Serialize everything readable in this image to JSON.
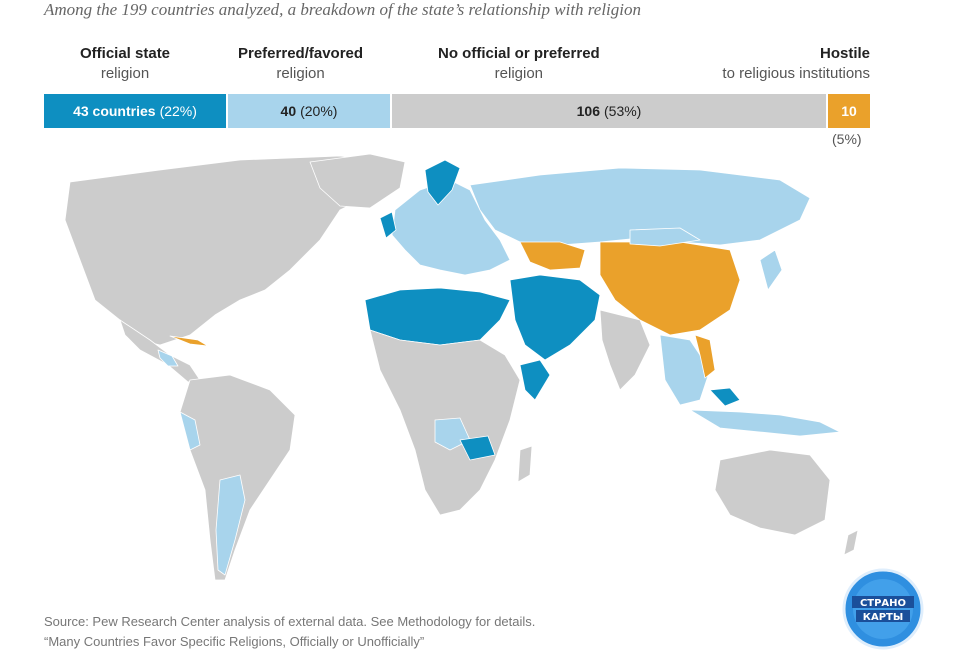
{
  "subtitle": "Among the 199 countries analyzed, a breakdown of the state’s relationship with religion",
  "categories": {
    "official": {
      "title": "Official state",
      "subtitle": "religion",
      "count_label": "43 countries",
      "pct_label": "(22%)",
      "color": "#0e8fc1"
    },
    "preferred": {
      "title": "Preferred/favored",
      "subtitle": "religion",
      "count_label": "40",
      "pct_label": "(20%)",
      "color": "#a8d4ec"
    },
    "none": {
      "title": "No official or preferred",
      "subtitle": "religion",
      "count_label": "106",
      "pct_label": "(53%)",
      "color": "#cccccc"
    },
    "hostile": {
      "title": "Hostile",
      "subtitle": "to religious institutions",
      "count_label": "10",
      "pct_label": "(5%)",
      "color": "#eaa12b"
    }
  },
  "chart_data": {
    "type": "bar",
    "categories": [
      "Official state religion",
      "Preferred/favored religion",
      "No official or preferred religion",
      "Hostile to religious institutions"
    ],
    "values": [
      43,
      40,
      106,
      10
    ],
    "percentages": [
      22,
      20,
      53,
      5
    ]
  },
  "source": {
    "line1": "Source: Pew Research Center analysis of external data. See Methodology for details.",
    "line2": "“Many Countries Favor Specific Religions, Officially or Unofficially”"
  },
  "logo": {
    "line1": "СТРАНО",
    "line2": "КАРТЫ"
  },
  "map_colors": {
    "ocean": "#ffffff",
    "border": "#333333"
  }
}
